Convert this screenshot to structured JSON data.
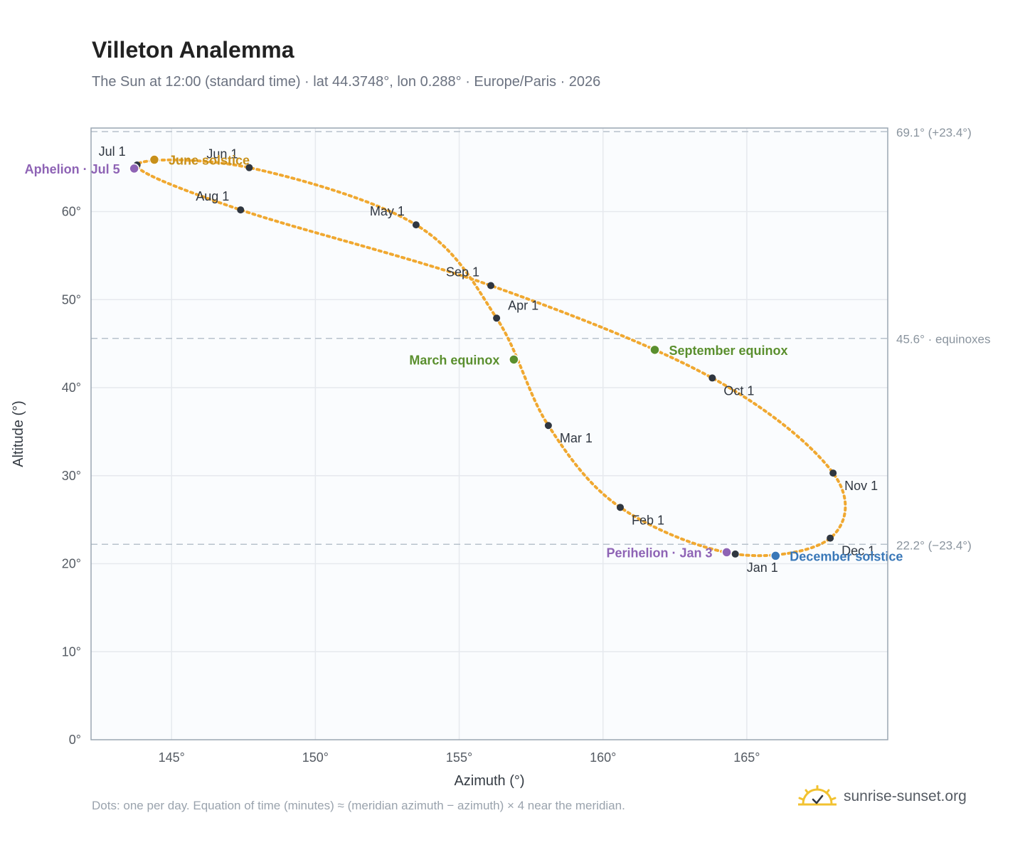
{
  "header": {
    "title": "Villeton Analemma",
    "subtitle": "The Sun at 12:00 (standard time) · lat 44.3748°, lon 0.288° · Europe/Paris · 2026"
  },
  "footer": {
    "note": "Dots: one per day. Equation of time (minutes) ≈ (meridian azimuth − azimuth) × 4 near the meridian.",
    "brand": "sunrise-sunset.org"
  },
  "icons": {
    "brand_logo": "sun-logo-icon"
  },
  "colors": {
    "path": "#f0a830",
    "month_marker": "#2f3640",
    "solstice_june": "#c8901a",
    "solstice_december": "#3a78b8",
    "equinox": "#5a8f2e",
    "apsis": "#8e63b5",
    "reference_line": "#b8c2cc",
    "plot_bg": "#fafcfe",
    "grid": "#e6e9ee"
  },
  "chart_data": {
    "type": "scatter",
    "xlabel": "Azimuth (°)",
    "ylabel": "Altitude (°)",
    "xlim": [
      142.2,
      169.9
    ],
    "ylim": [
      0,
      69.5
    ],
    "x_ticks": [
      145,
      150,
      155,
      160,
      165
    ],
    "x_tick_labels": [
      "145°",
      "150°",
      "155°",
      "160°",
      "165°"
    ],
    "y_ticks": [
      0,
      10,
      20,
      30,
      40,
      50,
      60
    ],
    "y_tick_labels": [
      "0°",
      "10°",
      "20°",
      "30°",
      "40°",
      "50°",
      "60°"
    ],
    "grid": true,
    "reference_lines": [
      {
        "altitude": 69.1,
        "label": "69.1° (+23.4°)"
      },
      {
        "altitude": 45.6,
        "label": "45.6° · equinoxes"
      },
      {
        "altitude": 22.2,
        "label": "22.2° (−23.4°)"
      }
    ],
    "month_markers": [
      {
        "label": "Jan 1",
        "azimuth": 164.6,
        "altitude": 21.1,
        "label_side": "below"
      },
      {
        "label": "Feb 1",
        "azimuth": 160.6,
        "altitude": 26.4,
        "label_side": "right"
      },
      {
        "label": "Mar 1",
        "azimuth": 158.1,
        "altitude": 35.7,
        "label_side": "right"
      },
      {
        "label": "Apr 1",
        "azimuth": 156.3,
        "altitude": 47.9,
        "label_side": "right-up"
      },
      {
        "label": "May 1",
        "azimuth": 153.5,
        "altitude": 58.5,
        "label_side": "left-up"
      },
      {
        "label": "Jun 1",
        "azimuth": 147.7,
        "altitude": 65.0,
        "label_side": "left-up"
      },
      {
        "label": "Jul 1",
        "azimuth": 143.8,
        "altitude": 65.3,
        "label_side": "left-up"
      },
      {
        "label": "Aug 1",
        "azimuth": 147.4,
        "altitude": 60.2,
        "label_side": "left-up"
      },
      {
        "label": "Sep 1",
        "azimuth": 156.1,
        "altitude": 51.6,
        "label_side": "left-up"
      },
      {
        "label": "Oct 1",
        "azimuth": 163.8,
        "altitude": 41.1,
        "label_side": "right-down"
      },
      {
        "label": "Nov 1",
        "azimuth": 168.0,
        "altitude": 30.3,
        "label_side": "right-down"
      },
      {
        "label": "Dec 1",
        "azimuth": 167.9,
        "altitude": 22.9,
        "label_side": "right-down"
      }
    ],
    "events": [
      {
        "label": "June solstice",
        "azimuth": 144.4,
        "altitude": 65.9,
        "kind": "solstice_june",
        "label_side": "right"
      },
      {
        "label": "December solstice",
        "azimuth": 166.0,
        "altitude": 20.9,
        "kind": "solstice_december",
        "label_side": "right"
      },
      {
        "label": "March equinox",
        "azimuth": 156.9,
        "altitude": 43.2,
        "kind": "equinox",
        "label_side": "left"
      },
      {
        "label": "September equinox",
        "azimuth": 161.8,
        "altitude": 44.3,
        "kind": "equinox",
        "label_side": "right"
      },
      {
        "label": "Aphelion · Jul 5",
        "azimuth": 143.7,
        "altitude": 64.9,
        "kind": "apsis",
        "label_side": "left"
      },
      {
        "label": "Perihelion · Jan 3",
        "azimuth": 164.3,
        "altitude": 21.3,
        "kind": "apsis",
        "label_side": "left"
      }
    ]
  }
}
